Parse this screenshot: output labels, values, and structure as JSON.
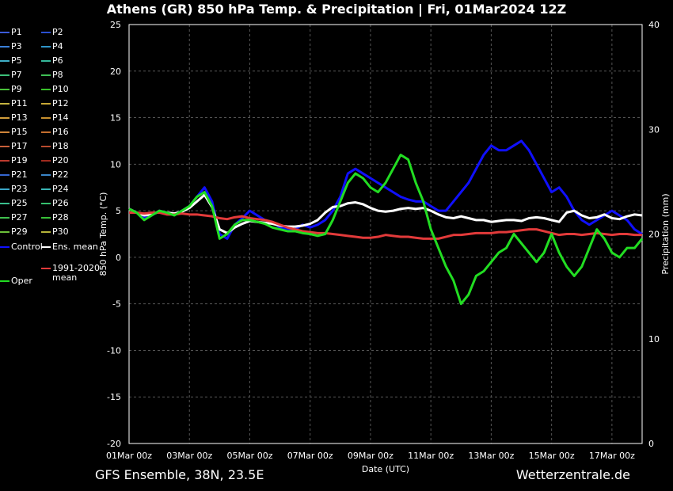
{
  "title": "Athens  (GR)  850 hPa Temp. & Precipitation | Fri, 01Mar2024 12Z",
  "footer": {
    "left": "GFS Ensemble, 38N, 23.5E",
    "right": "Wetterzentrale.de"
  },
  "chart_data": {
    "type": "line",
    "title": "Athens  (GR)  850 hPa Temp. & Precipitation | Fri, 01Mar2024 12Z",
    "xlabel": "Date (UTC)",
    "ylabel": "850 hPa Temp. (°C)",
    "y2label": "Precipitation (mm)",
    "x_ticks": [
      "01Mar 00z",
      "03Mar 00z",
      "05Mar 00z",
      "07Mar 00z",
      "09Mar 00z",
      "11Mar 00z",
      "13Mar 00z",
      "15Mar 00z",
      "17Mar 00z"
    ],
    "ylim": [
      -20,
      25
    ],
    "y_ticks": [
      25,
      20,
      15,
      10,
      5,
      0,
      -5,
      -10,
      -15,
      -20
    ],
    "y2lim": [
      0,
      40
    ],
    "y2_ticks": [
      40,
      30,
      20,
      10,
      0
    ],
    "grid": true,
    "legend_placement": "left",
    "legend": [
      {
        "label": "P1",
        "color": "#3b5bd9"
      },
      {
        "label": "P2",
        "color": "#2a4fd0"
      },
      {
        "label": "P3",
        "color": "#3a7fd9"
      },
      {
        "label": "P4",
        "color": "#2f95c8"
      },
      {
        "label": "P5",
        "color": "#3fb0c8"
      },
      {
        "label": "P6",
        "color": "#35b89a"
      },
      {
        "label": "P7",
        "color": "#3cc07a"
      },
      {
        "label": "P8",
        "color": "#3fbf55"
      },
      {
        "label": "P9",
        "color": "#4ac23a"
      },
      {
        "label": "P10",
        "color": "#39c22a"
      },
      {
        "label": "P11",
        "color": "#c6b440"
      },
      {
        "label": "P12",
        "color": "#c8a835"
      },
      {
        "label": "P13",
        "color": "#d19d3a"
      },
      {
        "label": "P14",
        "color": "#c8902e"
      },
      {
        "label": "P15",
        "color": "#cf853a"
      },
      {
        "label": "P16",
        "color": "#c46f2e"
      },
      {
        "label": "P17",
        "color": "#c85f3a"
      },
      {
        "label": "P18",
        "color": "#b94b2e"
      },
      {
        "label": "P19",
        "color": "#bd3a2e"
      },
      {
        "label": "P20",
        "color": "#a02a1e"
      },
      {
        "label": "P21",
        "color": "#3566d0"
      },
      {
        "label": "P22",
        "color": "#3a86c8"
      },
      {
        "label": "P23",
        "color": "#3aa6c8"
      },
      {
        "label": "P24",
        "color": "#3ab6b6"
      },
      {
        "label": "P25",
        "color": "#3ac08f"
      },
      {
        "label": "P26",
        "color": "#35c06e"
      },
      {
        "label": "P27",
        "color": "#40c04e"
      },
      {
        "label": "P28",
        "color": "#38c038"
      },
      {
        "label": "P29",
        "color": "#6cc03a"
      },
      {
        "label": "P30",
        "color": "#b6b43a"
      },
      {
        "label": "Control",
        "color": "#1010ff"
      },
      {
        "label": "Ens. mean",
        "color": "#ffffff"
      },
      {
        "label": "1991-2020 mean",
        "color": "#e23a3a"
      },
      {
        "label": "Oper",
        "color": "#22dd22"
      }
    ],
    "x_days": [
      0,
      0.25,
      0.5,
      0.75,
      1,
      1.25,
      1.5,
      1.75,
      2,
      2.25,
      2.5,
      2.75,
      3,
      3.25,
      3.5,
      3.75,
      4,
      4.25,
      4.5,
      4.75,
      5,
      5.25,
      5.5,
      5.75,
      6,
      6.25,
      6.5,
      6.75,
      7,
      7.25,
      7.5,
      7.75,
      8,
      8.25,
      8.5,
      8.75,
      9,
      9.25,
      9.5,
      9.75,
      10,
      10.25,
      10.5,
      10.75,
      11,
      11.25,
      11.5,
      11.75,
      12,
      12.25,
      12.5,
      12.75,
      13,
      13.25,
      13.5,
      13.75,
      14,
      14.25,
      14.5,
      14.75,
      15,
      15.25,
      15.5,
      15.75,
      16,
      16.25,
      16.5,
      16.75,
      17
    ],
    "series": [
      {
        "name": "Control",
        "values": [
          5.2,
          4.8,
          4.2,
          4.5,
          5,
          4.8,
          4.6,
          5,
          5.5,
          6.5,
          7.5,
          6,
          2.5,
          2,
          3.5,
          4.2,
          5,
          4.5,
          4,
          3.8,
          3.2,
          3,
          3,
          3.5,
          3.2,
          3.5,
          4,
          5,
          6.5,
          9,
          9.5,
          9,
          8.5,
          8,
          7.5,
          7,
          6.5,
          6.2,
          6,
          6,
          5.5,
          5,
          5,
          6,
          7,
          8,
          9.5,
          11,
          12,
          11.5,
          11.5,
          12,
          12.5,
          11.5,
          10,
          8.5,
          7,
          7.5,
          6.5,
          5,
          4,
          3.5,
          4,
          4.5,
          5,
          4.5,
          4,
          3,
          2.5
        ]
      },
      {
        "name": "Ens. mean",
        "values": [
          5.2,
          4.8,
          4.5,
          4.6,
          4.9,
          4.8,
          4.7,
          4.9,
          5.3,
          6,
          6.7,
          5.4,
          3,
          2.6,
          3.2,
          3.6,
          3.9,
          3.8,
          3.7,
          3.6,
          3.4,
          3.3,
          3.3,
          3.4,
          3.6,
          4,
          4.8,
          5.4,
          5.5,
          5.8,
          5.9,
          5.7,
          5.3,
          5,
          4.9,
          5,
          5.2,
          5.3,
          5.2,
          5.3,
          5,
          4.6,
          4.3,
          4.2,
          4.4,
          4.2,
          4,
          4,
          3.8,
          3.9,
          4,
          4,
          3.9,
          4.2,
          4.3,
          4.2,
          4,
          3.8,
          4.8,
          5,
          4.5,
          4.2,
          4.3,
          4.6,
          4.2,
          4.1,
          4.4,
          4.6,
          4.5
        ]
      },
      {
        "name": "1991-2020 mean",
        "values": [
          4.8,
          4.8,
          4.7,
          4.8,
          4.8,
          4.6,
          4.6,
          4.7,
          4.6,
          4.6,
          4.5,
          4.4,
          4.2,
          4.1,
          4.3,
          4.4,
          4.2,
          4.1,
          4,
          3.8,
          3.5,
          3.2,
          3,
          2.8,
          2.7,
          2.6,
          2.6,
          2.5,
          2.4,
          2.3,
          2.2,
          2.1,
          2.1,
          2.2,
          2.4,
          2.3,
          2.2,
          2.2,
          2.1,
          2,
          2,
          2,
          2.2,
          2.4,
          2.4,
          2.5,
          2.6,
          2.6,
          2.6,
          2.7,
          2.7,
          2.8,
          2.9,
          3,
          3,
          2.8,
          2.6,
          2.4,
          2.5,
          2.5,
          2.4,
          2.5,
          2.6,
          2.5,
          2.4,
          2.5,
          2.5,
          2.4,
          2.4
        ]
      },
      {
        "name": "Oper",
        "values": [
          5.2,
          4.8,
          4,
          4.5,
          5,
          4.8,
          4.5,
          5,
          5.5,
          6.5,
          7,
          5.5,
          2,
          2.5,
          3.5,
          4,
          4,
          3.8,
          3.6,
          3.2,
          3,
          2.8,
          2.8,
          2.6,
          2.5,
          2.3,
          2.5,
          4,
          6,
          8,
          9,
          8.5,
          7.5,
          7,
          8,
          9.5,
          11,
          10.5,
          8,
          6,
          3,
          1,
          -1,
          -2.5,
          -5,
          -4,
          -2,
          -1.5,
          -0.5,
          0.5,
          1,
          2.5,
          1.5,
          0.5,
          -0.5,
          0.5,
          2.5,
          0.5,
          -1,
          -2,
          -1,
          1,
          3,
          2,
          0.5,
          0,
          1,
          1,
          2
        ]
      }
    ]
  }
}
